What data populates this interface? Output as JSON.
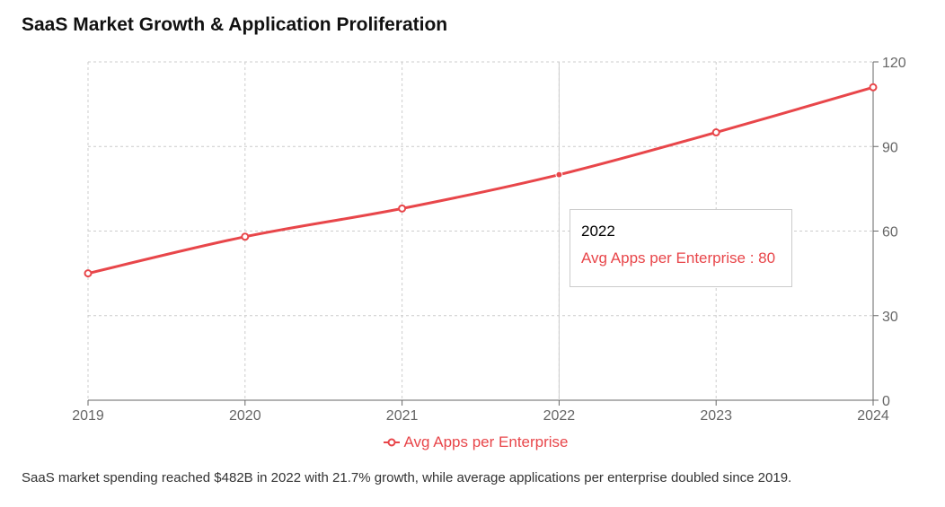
{
  "chart_data": {
    "type": "line",
    "title": "SaaS Market Growth & Application Proliferation",
    "categories": [
      "2019",
      "2020",
      "2021",
      "2022",
      "2023",
      "2024"
    ],
    "series": [
      {
        "name": "Avg Apps per Enterprise",
        "values": [
          45,
          58,
          68,
          80,
          95,
          111
        ],
        "color": "#e8464a"
      }
    ],
    "ylim": [
      0,
      120
    ],
    "yticks": [
      0,
      30,
      60,
      90,
      120
    ],
    "y_axis_side": "right",
    "grid": true,
    "legend_position": "bottom-center",
    "active_index": 3
  },
  "tooltip": {
    "label": "2022",
    "text": "Avg Apps per Enterprise : 80"
  },
  "legend": {
    "label": "Avg Apps per Enterprise"
  },
  "caption": "SaaS market spending reached $482B in 2022 with 21.7% growth, while average applications per enterprise doubled since 2019."
}
